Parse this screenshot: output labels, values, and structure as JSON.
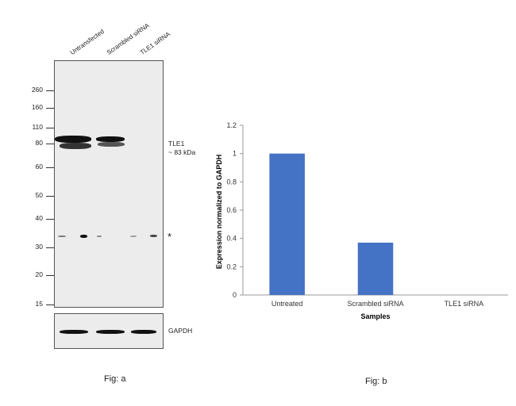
{
  "blot": {
    "lanes": [
      "Untransfected",
      "Scrambled siRNA",
      "TLE1 siRNA"
    ],
    "mw_markers": [
      "260",
      "160",
      "110",
      "80",
      "60",
      "50",
      "40",
      "30",
      "20",
      "15"
    ],
    "target_label_line1": "TLE1",
    "target_label_line2": "~ 83 kDa",
    "nonspecific_mark": "*",
    "loading_control": "GAPDH",
    "caption": "Fig: a"
  },
  "chart_data": {
    "type": "bar",
    "categories": [
      "Untreated",
      "Scrambled siRNA",
      "TLE1 siRNA"
    ],
    "values": [
      1.0,
      0.37,
      0.0
    ],
    "xlabel": "Samples",
    "ylabel": "Expression normalized to GAPDH",
    "ylim": [
      0,
      1.2
    ],
    "yticks": [
      "0",
      "0.2",
      "0.4",
      "0.6",
      "0.8",
      "1",
      "1.2"
    ],
    "bar_color": "#4472c4",
    "grid": false,
    "caption": "Fig: b"
  }
}
